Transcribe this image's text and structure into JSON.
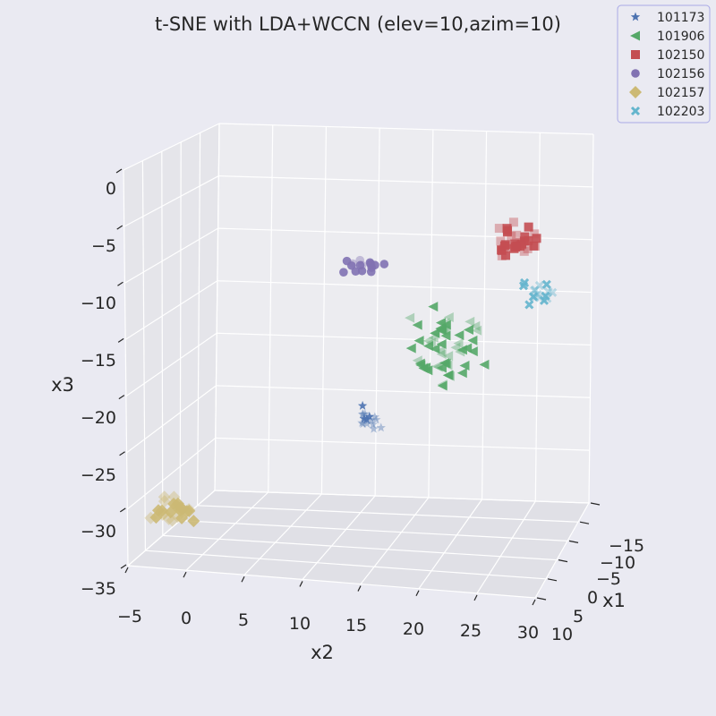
{
  "chart_data": {
    "type": "scatter",
    "title": "t-SNE with LDA+WCCN (elev=10,azim=10)",
    "xlabel": "x1",
    "ylabel": "x2",
    "zlabel": "x3",
    "x1_ticks": [
      "−15",
      "−10",
      "−5",
      "0",
      "5",
      "10"
    ],
    "x2_ticks": [
      "−5",
      "0",
      "5",
      "10",
      "15",
      "20",
      "25",
      "30"
    ],
    "x3_ticks": [
      "0",
      "−5",
      "−10",
      "−15",
      "−20",
      "−25",
      "−30",
      "−35"
    ],
    "x2_range": [
      -5,
      30
    ],
    "x3_range": [
      -35,
      0
    ],
    "view": {
      "elev": 10,
      "azim": 10
    },
    "grid": true,
    "legend_position": "top-right",
    "series": [
      {
        "name": "101173",
        "marker": "star",
        "color": "#4c72b0",
        "center": {
          "x2": 16,
          "x3": -21.5
        },
        "spread": {
          "x2": 1.1,
          "x3": 0.9
        },
        "count": 16
      },
      {
        "name": "101906",
        "marker": "triangle-left",
        "color": "#55a868",
        "center": {
          "x2": 23,
          "x3": -14.5
        },
        "spread": {
          "x2": 2.0,
          "x3": 2.4
        },
        "count": 60
      },
      {
        "name": "102150",
        "marker": "square",
        "color": "#c44e52",
        "center": {
          "x2": 29,
          "x3": -4.8
        },
        "spread": {
          "x2": 1.5,
          "x3": 1.1
        },
        "count": 35
      },
      {
        "name": "102156",
        "marker": "circle",
        "color": "#8172b2",
        "center": {
          "x2": 15.5,
          "x3": -7.3
        },
        "spread": {
          "x2": 1.2,
          "x3": 0.6
        },
        "count": 16
      },
      {
        "name": "102157",
        "marker": "diamond",
        "color": "#ccb974",
        "center": {
          "x2": -1,
          "x3": -30
        },
        "spread": {
          "x2": 1.4,
          "x3": 1.0
        },
        "count": 25
      },
      {
        "name": "102203",
        "marker": "x",
        "color": "#64b5cd",
        "center": {
          "x2": 31,
          "x3": -9.5
        },
        "spread": {
          "x2": 1.0,
          "x3": 0.8
        },
        "count": 16
      }
    ]
  }
}
